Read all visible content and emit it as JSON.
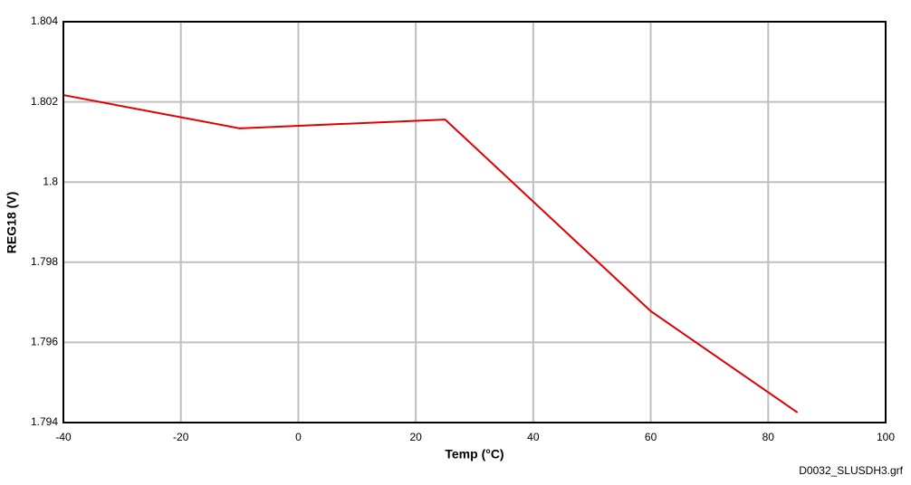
{
  "chart_data": {
    "type": "line",
    "x_label": "Temp (°C)",
    "y_label": "REG18 (V)",
    "footnote": "D0032_SLUSDH3.grf",
    "x": [
      -40,
      -10,
      25,
      60,
      85
    ],
    "values": [
      1.80217,
      1.80134,
      1.80156,
      1.79678,
      1.79425
    ],
    "color": "#e00000",
    "xlim": [
      -40,
      100
    ],
    "xticks": [
      -40,
      -20,
      0,
      20,
      40,
      60,
      80,
      100
    ],
    "ylim": [
      1.794,
      1.804
    ],
    "yticks": [
      1.794,
      1.796,
      1.798,
      1.8,
      1.802,
      1.804
    ],
    "grid": true
  }
}
